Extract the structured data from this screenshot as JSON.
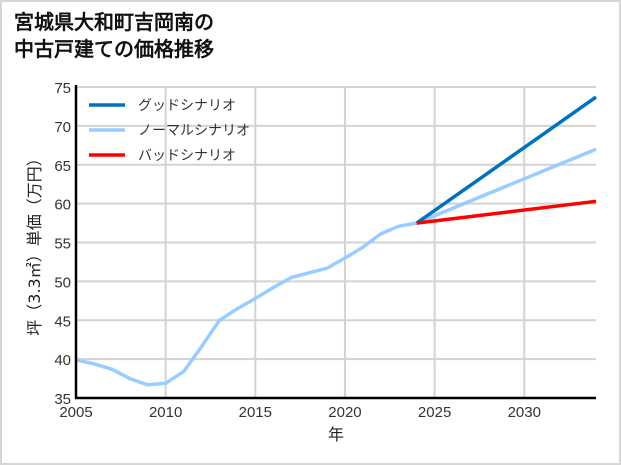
{
  "title_line1": "宮城県大和町吉岡南の",
  "title_line2": "中古戸建ての価格推移",
  "chart_data": {
    "type": "line",
    "title": "宮城県大和町吉岡南の中古戸建ての価格推移",
    "xlabel": "年",
    "ylabel": "坪（3.3㎡）単価（万円）",
    "xlim": [
      2005,
      2034
    ],
    "ylim": [
      35,
      75
    ],
    "xticks": [
      2005,
      2010,
      2015,
      2020,
      2025,
      2030
    ],
    "yticks": [
      35,
      40,
      45,
      50,
      55,
      60,
      65,
      70,
      75
    ],
    "grid": true,
    "legend_position": "upper left",
    "series": [
      {
        "name": "グッドシナリオ",
        "color": "#0070c0",
        "x": [
          2024,
          2034
        ],
        "values": [
          57.5,
          73.7
        ]
      },
      {
        "name": "ノーマルシナリオ",
        "color": "#99ccff",
        "x": [
          2005,
          2006,
          2007,
          2008,
          2009,
          2010,
          2011,
          2012,
          2013,
          2014,
          2015,
          2016,
          2017,
          2018,
          2019,
          2020,
          2021,
          2022,
          2023,
          2024,
          2034
        ],
        "values": [
          39.9,
          39.4,
          38.7,
          37.5,
          36.7,
          36.9,
          38.4,
          41.6,
          45.0,
          46.5,
          47.8,
          49.2,
          50.5,
          51.1,
          51.7,
          53.0,
          54.4,
          56.1,
          57.1,
          57.5,
          67.0
        ]
      },
      {
        "name": "バッドシナリオ",
        "color": "#ff0000",
        "x": [
          2024,
          2034
        ],
        "values": [
          57.5,
          60.3
        ]
      }
    ]
  }
}
